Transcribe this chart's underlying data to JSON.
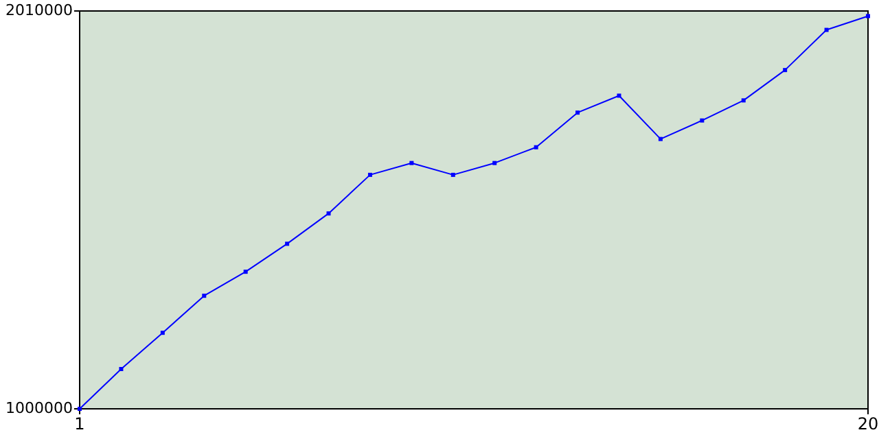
{
  "chart_data": {
    "type": "line",
    "x": [
      1,
      2,
      3,
      4,
      5,
      6,
      7,
      8,
      9,
      10,
      11,
      12,
      13,
      14,
      15,
      16,
      17,
      18,
      19,
      20
    ],
    "values": [
      1000000,
      1101000,
      1193000,
      1287000,
      1348000,
      1419000,
      1496000,
      1594000,
      1624000,
      1594000,
      1624000,
      1664000,
      1752000,
      1795000,
      1685000,
      1732000,
      1783000,
      1860000,
      1962000,
      1997000
    ],
    "color": "#0000ff",
    "xlim": [
      1,
      20
    ],
    "xticks": [
      1,
      20
    ],
    "ylim": [
      1000000,
      2010000
    ],
    "yticks": [
      1000000,
      2010000
    ],
    "grid": false,
    "marker": "square",
    "line_style": "solid"
  }
}
